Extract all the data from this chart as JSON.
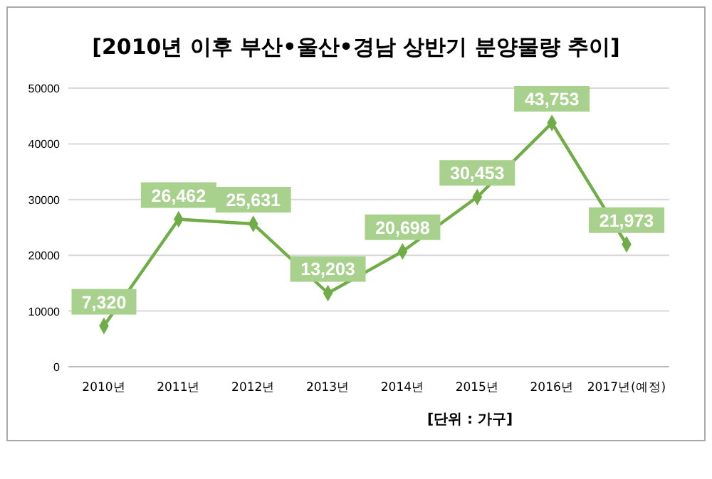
{
  "chart_data": {
    "type": "line",
    "title": "[2010년 이후 부산•울산•경남 상반기 분양물량 추이]",
    "categories": [
      "2010년",
      "2011년",
      "2012년",
      "2013년",
      "2014년",
      "2015년",
      "2016년",
      "2017년(예정)"
    ],
    "series": [
      {
        "color": "#70ad47",
        "values": [
          7320,
          26462,
          25631,
          13203,
          20698,
          30453,
          43753,
          21973
        ],
        "value_labels": [
          "7,320",
          "26,462",
          "25,631",
          "13,203",
          "20,698",
          "30,453",
          "43,753",
          "21,973"
        ]
      }
    ],
    "ylim": [
      0,
      50000
    ],
    "yticks": [
      0,
      10000,
      20000,
      30000,
      40000,
      50000
    ],
    "grid": "y",
    "marker": "diamond",
    "line_style": "solid",
    "annotations": [
      "[단위 : 가구]"
    ]
  }
}
